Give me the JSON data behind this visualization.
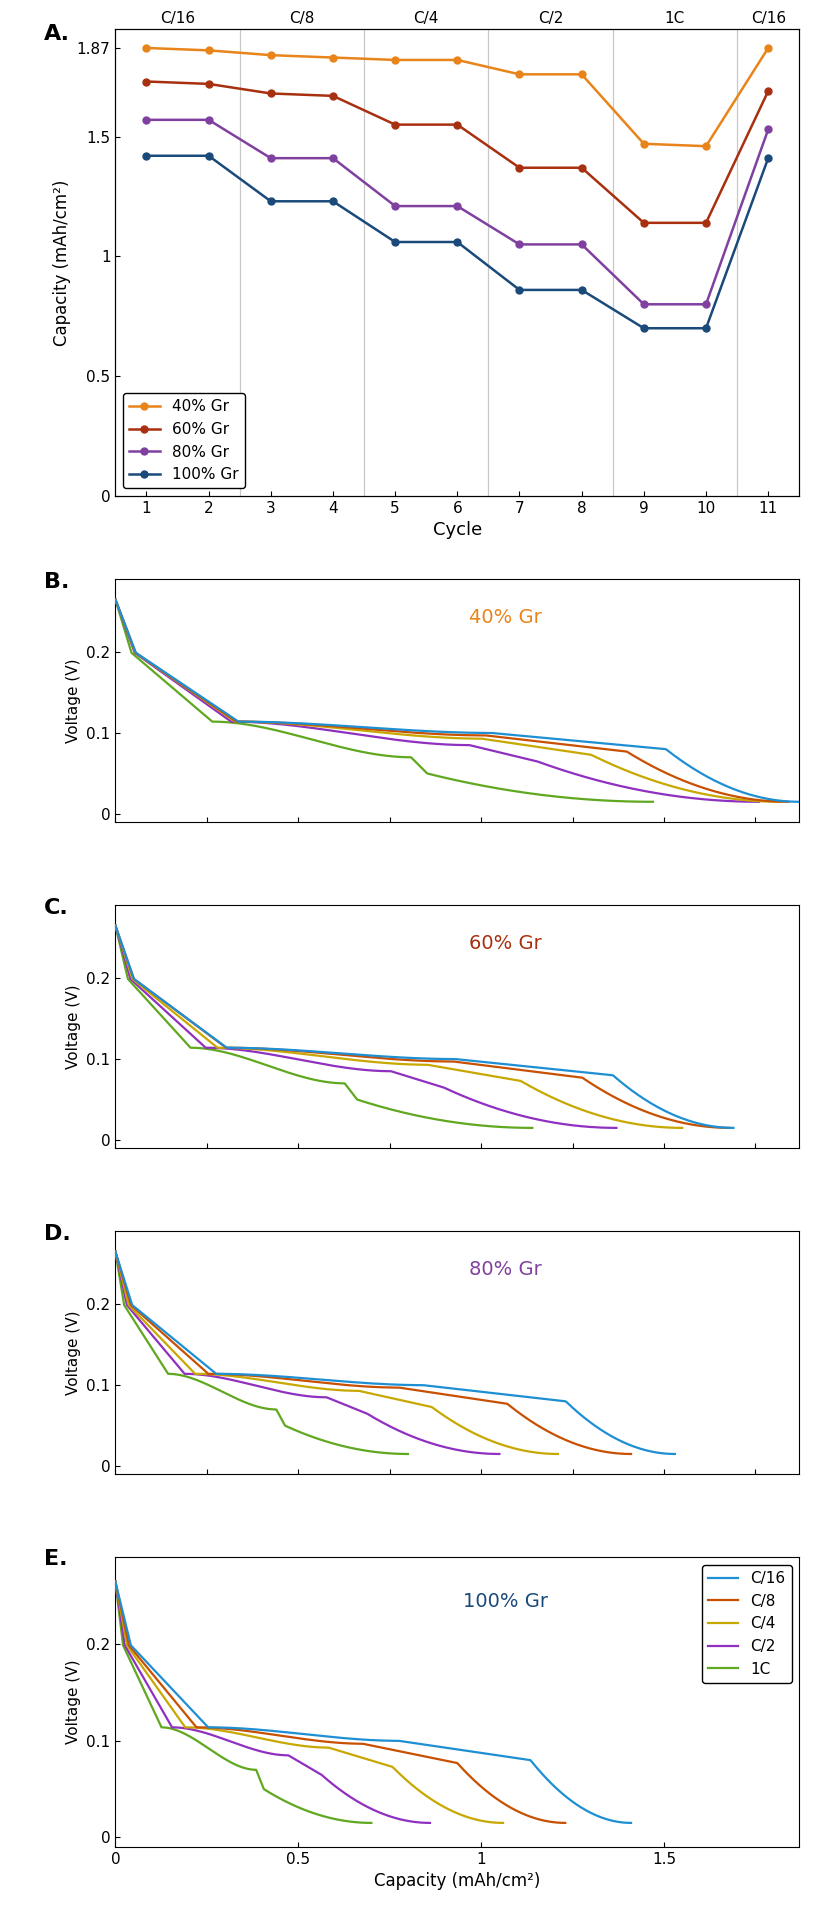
{
  "panel_A": {
    "cycles": [
      1,
      2,
      3,
      4,
      5,
      6,
      7,
      8,
      9,
      10,
      11
    ],
    "gr40": [
      1.87,
      1.86,
      1.84,
      1.83,
      1.82,
      1.82,
      1.76,
      1.76,
      1.47,
      1.46,
      1.87
    ],
    "gr60": [
      1.73,
      1.72,
      1.68,
      1.67,
      1.55,
      1.55,
      1.37,
      1.37,
      1.14,
      1.14,
      1.69
    ],
    "gr80": [
      1.57,
      1.57,
      1.41,
      1.41,
      1.21,
      1.21,
      1.05,
      1.05,
      0.8,
      0.8,
      1.53
    ],
    "gr100": [
      1.42,
      1.42,
      1.23,
      1.23,
      1.06,
      1.06,
      0.86,
      0.86,
      0.7,
      0.7,
      1.41
    ],
    "colors": [
      "#E8841A",
      "#A83010",
      "#8040A0",
      "#1A4A7A"
    ],
    "vlines": [
      2.5,
      4.5,
      6.5,
      8.5,
      10.5
    ],
    "rate_labels": [
      "C/16",
      "C/8",
      "C/4",
      "C/2",
      "1C",
      "C/16"
    ],
    "rate_positions": [
      1.5,
      3.5,
      5.5,
      7.5,
      9.5,
      11.0
    ],
    "ylim": [
      0,
      1.95
    ],
    "ylabel": "Capacity (mAh/cm²)",
    "xlabel": "Cycle"
  },
  "voltage_curves": {
    "colors_rate": [
      "#1F8FD4",
      "#C85000",
      "#C8A800",
      "#9030C0",
      "#60A820"
    ],
    "rate_names": [
      "C/16",
      "C/8",
      "C/4",
      "C/2",
      "1C"
    ],
    "xlim": [
      0,
      1.87
    ],
    "ylim": [
      -0.01,
      0.29
    ],
    "yticks": [
      0,
      0.1,
      0.2
    ],
    "xticks": [
      0,
      0.5,
      1.0,
      1.5
    ],
    "xlabel": "Capacity (mAh/cm²)",
    "ylabel": "Voltage (V)",
    "panel_labels": [
      "40% Gr",
      "60% Gr",
      "80% Gr",
      "100% Gr"
    ],
    "panel_label_colors": [
      "#E8841A",
      "#A83010",
      "#8040A0",
      "#1A4A7A"
    ],
    "cap_data": {
      "40%": [
        1.87,
        1.84,
        1.82,
        1.76,
        1.47
      ],
      "60%": [
        1.69,
        1.68,
        1.55,
        1.37,
        1.14
      ],
      "80%": [
        1.53,
        1.41,
        1.21,
        1.05,
        0.8
      ],
      "100%": [
        1.41,
        1.23,
        1.06,
        0.86,
        0.7
      ]
    }
  }
}
